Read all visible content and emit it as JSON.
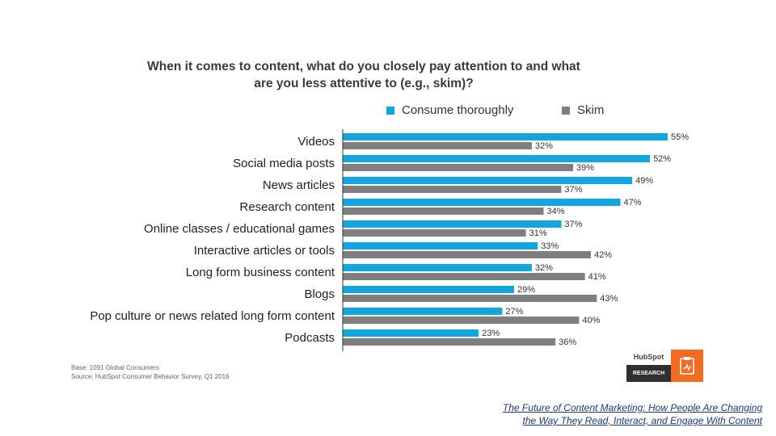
{
  "chart_data": {
    "type": "bar",
    "orientation": "horizontal",
    "title": "When it comes to content, what do you closely pay attention to and what are you less attentive to (e.g., skim)?",
    "categories": [
      "Videos",
      "Social media posts",
      "News articles",
      "Research content",
      "Online classes / educational games",
      "Interactive articles or tools",
      "Long form business content",
      "Blogs",
      "Pop culture or news related long form content",
      "Podcasts"
    ],
    "series": [
      {
        "name": "Consume thoroughly",
        "color": "#12a5de",
        "values": [
          55,
          52,
          49,
          47,
          37,
          33,
          32,
          29,
          27,
          23
        ]
      },
      {
        "name": "Skim",
        "color": "#7f7f7f",
        "values": [
          32,
          39,
          37,
          34,
          31,
          42,
          41,
          43,
          40,
          36
        ]
      }
    ],
    "value_suffix": "%",
    "xlim": [
      0,
      55
    ],
    "legend_position": "top",
    "grid": false
  },
  "footnotes": {
    "base": "Base: 1091 Global Consumers",
    "source": "Source: HubSpot Consumer Behavior Survey, Q1 2016"
  },
  "branding": {
    "logo_text": "HubSpot",
    "badge_text": "RESEARCH",
    "badge_color": "#f26b21",
    "icon": "clipboard-chart-icon"
  },
  "citation": {
    "line1": "The Future of Content Marketing: How People Are Changing",
    "line2": "the Way They Read, Interact, and Engage With Content"
  }
}
